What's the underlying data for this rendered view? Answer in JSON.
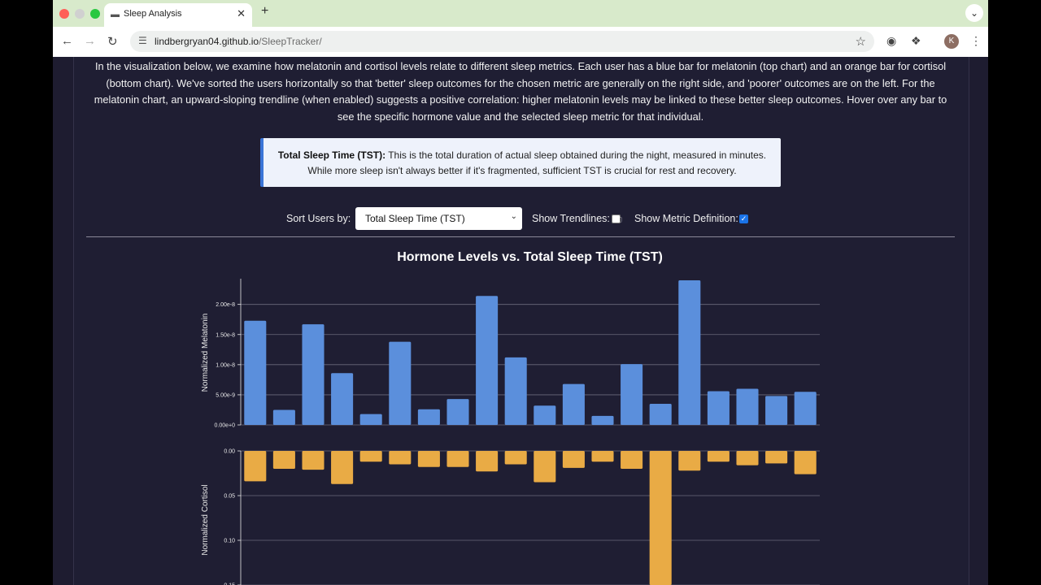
{
  "browser": {
    "tab_title": "Sleep Analysis",
    "url_host": "lindbergryan04.github.io",
    "url_path": "/SleepTracker/",
    "avatar_letter": "K"
  },
  "page": {
    "intro": "In the visualization below, we examine how melatonin and cortisol levels relate to different sleep metrics. Each user has a blue bar for melatonin (top chart) and an orange bar for cortisol (bottom chart). We've sorted the users horizontally so that 'better' sleep outcomes for the chosen metric are generally on the right side, and 'poorer' outcomes are on the left. For the melatonin chart, an upward-sloping trendline (when enabled) suggests a positive correlation: higher melatonin levels may be linked to these better sleep outcomes. Hover over any bar to see the specific hormone value and the selected sleep metric for that individual.",
    "definition_term": "Total Sleep Time (TST):",
    "definition_text": " This is the total duration of actual sleep obtained during the night, measured in minutes. While more sleep isn't always better if it's fragmented, sufficient TST is crucial for rest and recovery.",
    "controls": {
      "sort_label": "Sort Users by:",
      "sort_value": "Total Sleep Time (TST)",
      "trendlines_label": "Show Trendlines:",
      "trendlines_checked": false,
      "definition_label": "Show Metric Definition:",
      "definition_checked": true
    }
  },
  "chart_data": {
    "type": "bar",
    "title": "Hormone Levels vs. Total Sleep Time (TST)",
    "colors": {
      "melatonin": "#5b8fdc",
      "cortisol": "#e9ab45"
    },
    "melatonin": {
      "ylabel": "Normalized Melatonin",
      "ylim": [
        0,
        2.4e-08
      ],
      "ticks": [
        "0.00e+0",
        "5.00e-9",
        "1.00e-8",
        "1.50e-8",
        "2.00e-8"
      ],
      "tick_values": [
        0,
        5e-09,
        1e-08,
        1.5e-08,
        2e-08
      ],
      "values": [
        1.73e-08,
        2.5e-09,
        1.67e-08,
        8.6e-09,
        1.8e-09,
        1.38e-08,
        2.6e-09,
        4.3e-09,
        2.14e-08,
        1.12e-08,
        3.2e-09,
        6.8e-09,
        1.5e-09,
        1.01e-08,
        3.5e-09,
        2.4e-08,
        5.6e-09,
        6e-09,
        4.8e-09,
        5.5e-09
      ]
    },
    "cortisol": {
      "ylabel": "Normalized Cortisol",
      "ticks": [
        "0.00",
        "0.05",
        "0.10",
        "0.15"
      ],
      "tick_values": [
        0,
        0.05,
        0.1,
        0.15
      ],
      "values": [
        0.034,
        0.02,
        0.021,
        0.037,
        0.012,
        0.015,
        0.018,
        0.018,
        0.023,
        0.015,
        0.035,
        0.019,
        0.012,
        0.02,
        0.15,
        0.022,
        0.012,
        0.016,
        0.014,
        0.026
      ]
    }
  }
}
